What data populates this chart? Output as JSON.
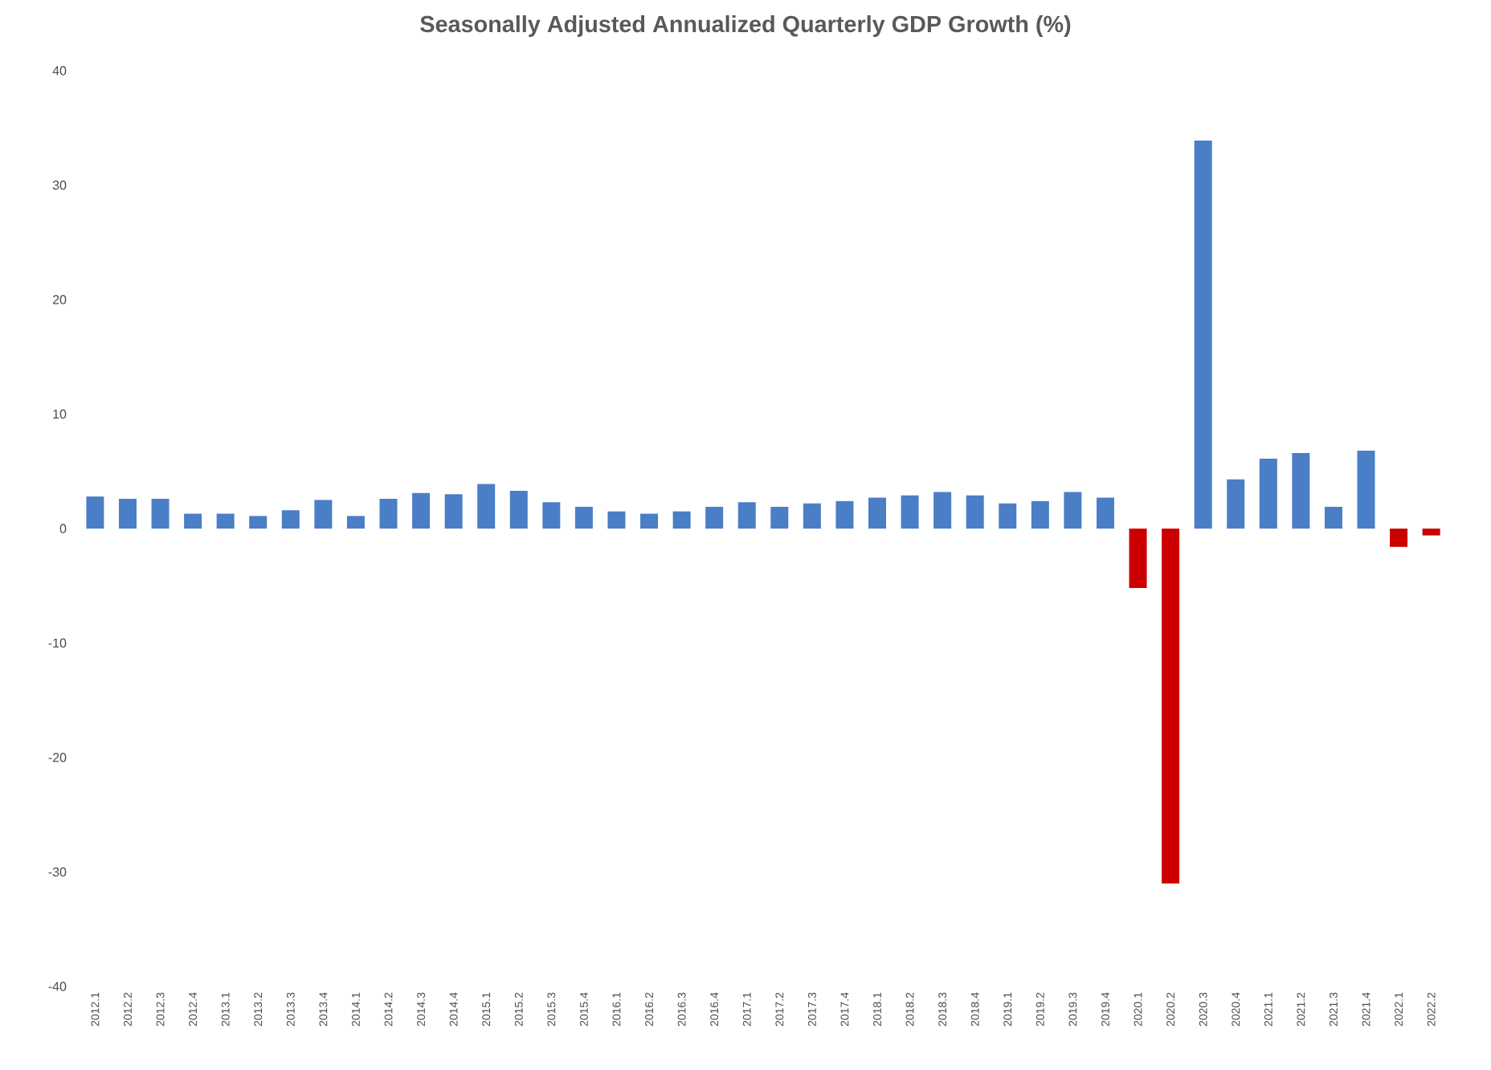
{
  "chart_data": {
    "type": "bar",
    "title": "Seasonally Adjusted Annualized Quarterly GDP Growth (%)",
    "categories": [
      "2012.1",
      "2012.2",
      "2012.3",
      "2012.4",
      "2013.1",
      "2013.2",
      "2013.3",
      "2013.4",
      "2014.1",
      "2014.2",
      "2014.3",
      "2014.4",
      "2015.1",
      "2015.2",
      "2015.3",
      "2015.4",
      "2016.1",
      "2016.2",
      "2016.3",
      "2016.4",
      "2017.1",
      "2017.2",
      "2017.3",
      "2017.4",
      "2018.1",
      "2018.2",
      "2018.3",
      "2018.4",
      "2019.1",
      "2019.2",
      "2019.3",
      "2019.4",
      "2020.1",
      "2020.2",
      "2020.3",
      "2020.4",
      "2021.1",
      "2021.2",
      "2021.3",
      "2021.4",
      "2022.1",
      "2022.2"
    ],
    "values": [
      2.8,
      2.6,
      2.6,
      1.3,
      1.3,
      1.1,
      1.6,
      2.5,
      1.1,
      2.6,
      3.1,
      3.0,
      3.9,
      3.3,
      2.3,
      1.9,
      1.5,
      1.3,
      1.5,
      1.9,
      2.3,
      1.9,
      2.2,
      2.4,
      2.7,
      2.9,
      3.2,
      2.9,
      2.2,
      2.4,
      3.2,
      2.7,
      -5.2,
      -31,
      33.9,
      4.3,
      6.1,
      6.6,
      1.9,
      6.8,
      -1.6,
      -0.6
    ],
    "colors": [
      "#4a7ec6",
      "#4a7ec6",
      "#4a7ec6",
      "#4a7ec6",
      "#4a7ec6",
      "#4a7ec6",
      "#4a7ec6",
      "#4a7ec6",
      "#4a7ec6",
      "#4a7ec6",
      "#4a7ec6",
      "#4a7ec6",
      "#4a7ec6",
      "#4a7ec6",
      "#4a7ec6",
      "#4a7ec6",
      "#4a7ec6",
      "#4a7ec6",
      "#4a7ec6",
      "#4a7ec6",
      "#4a7ec6",
      "#4a7ec6",
      "#4a7ec6",
      "#4a7ec6",
      "#4a7ec6",
      "#4a7ec6",
      "#4a7ec6",
      "#4a7ec6",
      "#4a7ec6",
      "#4a7ec6",
      "#4a7ec6",
      "#4a7ec6",
      "#cc0000",
      "#cc0000",
      "#4a7ec6",
      "#4a7ec6",
      "#4a7ec6",
      "#4a7ec6",
      "#4a7ec6",
      "#4a7ec6",
      "#cc0000",
      "#cc0000"
    ],
    "ylim": [
      -40,
      40
    ],
    "yticks": [
      -40,
      -30,
      -20,
      -10,
      0,
      10,
      20,
      30,
      40
    ]
  }
}
